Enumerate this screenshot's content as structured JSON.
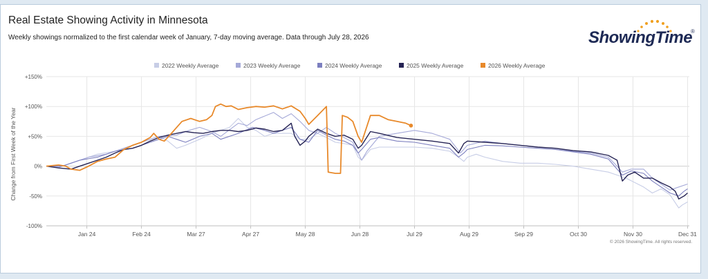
{
  "header": {
    "title": "Real Estate Showing Activity in Minnesota",
    "subtitle": "Weekly showings normalized to the first calendar week of January, 7-day moving average. Data through July 28, 2026"
  },
  "logo": {
    "text": "ShowingTime",
    "reg_mark": "®"
  },
  "copyright": "© 2026 ShowingTime. All rights reserved.",
  "colors": {
    "s2022": "#c7cde6",
    "s2023": "#a5a9d8",
    "s2024": "#7c7fbf",
    "s2025": "#252354",
    "s2026": "#e8892a",
    "grid": "#e6e6e6",
    "logo_accent": "#f0a020"
  },
  "chart_data": {
    "type": "line",
    "ylabel": "Change from First Week of the Year",
    "xlabel": "",
    "ylim": [
      -100,
      150
    ],
    "y_ticks": [
      -100,
      -50,
      0,
      50,
      100,
      150
    ],
    "y_tick_labels": [
      "-100%",
      "-50%",
      "0%",
      "+50%",
      "+100%",
      "+150%"
    ],
    "x_domain_day_of_year": [
      1,
      366
    ],
    "x_ticks": [
      {
        "label": "Jan 24",
        "day": 24
      },
      {
        "label": "Feb 24",
        "day": 55
      },
      {
        "label": "Mar 27",
        "day": 86
      },
      {
        "label": "Apr 27",
        "day": 117
      },
      {
        "label": "May 28",
        "day": 148
      },
      {
        "label": "Jun 28",
        "day": 179
      },
      {
        "label": "Jul 29",
        "day": 210
      },
      {
        "label": "Aug 29",
        "day": 241
      },
      {
        "label": "Sep 29",
        "day": 272
      },
      {
        "label": "Oct 30",
        "day": 303
      },
      {
        "label": "Nov 30",
        "day": 334
      },
      {
        "label": "Dec 31",
        "day": 365
      }
    ],
    "grid": true,
    "legend_position": "top-center",
    "series": [
      {
        "name": "2022 Weekly Average",
        "color_key": "s2022",
        "points": [
          [
            1,
            0
          ],
          [
            10,
            0
          ],
          [
            20,
            10
          ],
          [
            30,
            20
          ],
          [
            40,
            25
          ],
          [
            50,
            35
          ],
          [
            60,
            45
          ],
          [
            65,
            50
          ],
          [
            70,
            42
          ],
          [
            75,
            30
          ],
          [
            80,
            35
          ],
          [
            88,
            45
          ],
          [
            95,
            55
          ],
          [
            105,
            65
          ],
          [
            110,
            80
          ],
          [
            115,
            65
          ],
          [
            120,
            60
          ],
          [
            125,
            50
          ],
          [
            130,
            55
          ],
          [
            140,
            55
          ],
          [
            145,
            45
          ],
          [
            150,
            45
          ],
          [
            155,
            55
          ],
          [
            160,
            48
          ],
          [
            165,
            40
          ],
          [
            170,
            38
          ],
          [
            175,
            35
          ],
          [
            178,
            15
          ],
          [
            180,
            10
          ],
          [
            185,
            28
          ],
          [
            190,
            32
          ],
          [
            200,
            32
          ],
          [
            210,
            32
          ],
          [
            220,
            30
          ],
          [
            230,
            25
          ],
          [
            235,
            15
          ],
          [
            238,
            8
          ],
          [
            240,
            15
          ],
          [
            245,
            20
          ],
          [
            250,
            15
          ],
          [
            260,
            8
          ],
          [
            270,
            5
          ],
          [
            280,
            5
          ],
          [
            290,
            3
          ],
          [
            300,
            0
          ],
          [
            310,
            -5
          ],
          [
            320,
            -10
          ],
          [
            330,
            -20
          ],
          [
            340,
            -35
          ],
          [
            345,
            -45
          ],
          [
            350,
            -38
          ],
          [
            355,
            -48
          ],
          [
            360,
            -70
          ],
          [
            362,
            -65
          ],
          [
            365,
            -60
          ]
        ]
      },
      {
        "name": "2023 Weekly Average",
        "color_key": "s2023",
        "points": [
          [
            1,
            0
          ],
          [
            8,
            -2
          ],
          [
            15,
            5
          ],
          [
            25,
            15
          ],
          [
            35,
            20
          ],
          [
            45,
            30
          ],
          [
            55,
            40
          ],
          [
            65,
            50
          ],
          [
            75,
            52
          ],
          [
            82,
            60
          ],
          [
            88,
            65
          ],
          [
            95,
            58
          ],
          [
            100,
            50
          ],
          [
            110,
            72
          ],
          [
            115,
            68
          ],
          [
            120,
            78
          ],
          [
            130,
            90
          ],
          [
            135,
            80
          ],
          [
            140,
            88
          ],
          [
            145,
            75
          ],
          [
            150,
            60
          ],
          [
            155,
            55
          ],
          [
            160,
            65
          ],
          [
            165,
            55
          ],
          [
            170,
            48
          ],
          [
            175,
            40
          ],
          [
            180,
            10
          ],
          [
            183,
            25
          ],
          [
            190,
            50
          ],
          [
            200,
            55
          ],
          [
            210,
            60
          ],
          [
            220,
            55
          ],
          [
            230,
            45
          ],
          [
            236,
            22
          ],
          [
            240,
            35
          ],
          [
            250,
            42
          ],
          [
            260,
            38
          ],
          [
            270,
            35
          ],
          [
            280,
            32
          ],
          [
            290,
            30
          ],
          [
            300,
            25
          ],
          [
            310,
            22
          ],
          [
            320,
            15
          ],
          [
            325,
            0
          ],
          [
            328,
            -10
          ],
          [
            333,
            -5
          ],
          [
            340,
            -5
          ],
          [
            345,
            -20
          ],
          [
            350,
            -30
          ],
          [
            355,
            -40
          ],
          [
            360,
            -35
          ],
          [
            365,
            -30
          ]
        ]
      },
      {
        "name": "2024 Weekly Average",
        "color_key": "s2024",
        "points": [
          [
            1,
            0
          ],
          [
            10,
            0
          ],
          [
            20,
            10
          ],
          [
            30,
            15
          ],
          [
            40,
            25
          ],
          [
            50,
            30
          ],
          [
            60,
            40
          ],
          [
            65,
            45
          ],
          [
            70,
            50
          ],
          [
            75,
            45
          ],
          [
            80,
            40
          ],
          [
            88,
            50
          ],
          [
            95,
            55
          ],
          [
            100,
            45
          ],
          [
            110,
            55
          ],
          [
            118,
            65
          ],
          [
            125,
            60
          ],
          [
            130,
            55
          ],
          [
            140,
            65
          ],
          [
            145,
            45
          ],
          [
            150,
            40
          ],
          [
            155,
            60
          ],
          [
            160,
            52
          ],
          [
            165,
            45
          ],
          [
            170,
            42
          ],
          [
            175,
            35
          ],
          [
            178,
            22
          ],
          [
            180,
            28
          ],
          [
            185,
            45
          ],
          [
            190,
            48
          ],
          [
            200,
            42
          ],
          [
            210,
            40
          ],
          [
            220,
            35
          ],
          [
            230,
            30
          ],
          [
            235,
            15
          ],
          [
            238,
            22
          ],
          [
            240,
            28
          ],
          [
            250,
            35
          ],
          [
            260,
            34
          ],
          [
            270,
            32
          ],
          [
            280,
            30
          ],
          [
            290,
            28
          ],
          [
            300,
            24
          ],
          [
            310,
            20
          ],
          [
            320,
            12
          ],
          [
            325,
            -5
          ],
          [
            328,
            -15
          ],
          [
            333,
            -8
          ],
          [
            340,
            -12
          ],
          [
            345,
            -25
          ],
          [
            350,
            -35
          ],
          [
            355,
            -45
          ],
          [
            360,
            -50
          ],
          [
            363,
            -42
          ],
          [
            365,
            -38
          ]
        ]
      },
      {
        "name": "2025 Weekly Average",
        "color_key": "s2025",
        "points": [
          [
            1,
            0
          ],
          [
            8,
            -3
          ],
          [
            15,
            -5
          ],
          [
            20,
            0
          ],
          [
            25,
            5
          ],
          [
            30,
            10
          ],
          [
            35,
            15
          ],
          [
            40,
            22
          ],
          [
            45,
            28
          ],
          [
            50,
            30
          ],
          [
            55,
            35
          ],
          [
            60,
            42
          ],
          [
            65,
            48
          ],
          [
            70,
            52
          ],
          [
            75,
            55
          ],
          [
            80,
            58
          ],
          [
            85,
            56
          ],
          [
            90,
            55
          ],
          [
            95,
            58
          ],
          [
            100,
            60
          ],
          [
            105,
            60
          ],
          [
            110,
            58
          ],
          [
            115,
            60
          ],
          [
            120,
            64
          ],
          [
            125,
            62
          ],
          [
            130,
            58
          ],
          [
            135,
            60
          ],
          [
            140,
            72
          ],
          [
            142,
            50
          ],
          [
            145,
            35
          ],
          [
            148,
            42
          ],
          [
            150,
            50
          ],
          [
            155,
            62
          ],
          [
            160,
            55
          ],
          [
            165,
            50
          ],
          [
            170,
            52
          ],
          [
            175,
            45
          ],
          [
            178,
            30
          ],
          [
            180,
            35
          ],
          [
            185,
            58
          ],
          [
            190,
            55
          ],
          [
            200,
            48
          ],
          [
            210,
            45
          ],
          [
            220,
            42
          ],
          [
            230,
            38
          ],
          [
            235,
            22
          ],
          [
            238,
            38
          ],
          [
            240,
            42
          ],
          [
            250,
            40
          ],
          [
            260,
            38
          ],
          [
            270,
            35
          ],
          [
            280,
            32
          ],
          [
            290,
            30
          ],
          [
            300,
            26
          ],
          [
            310,
            24
          ],
          [
            320,
            18
          ],
          [
            325,
            10
          ],
          [
            328,
            -25
          ],
          [
            331,
            -15
          ],
          [
            335,
            -10
          ],
          [
            340,
            -20
          ],
          [
            345,
            -20
          ],
          [
            350,
            -28
          ],
          [
            355,
            -35
          ],
          [
            358,
            -42
          ],
          [
            360,
            -55
          ],
          [
            363,
            -50
          ],
          [
            365,
            -45
          ]
        ]
      },
      {
        "name": "2026 Weekly Average",
        "color_key": "s2026",
        "points": [
          [
            1,
            0
          ],
          [
            8,
            2
          ],
          [
            12,
            0
          ],
          [
            15,
            -5
          ],
          [
            20,
            -7
          ],
          [
            25,
            0
          ],
          [
            30,
            8
          ],
          [
            35,
            12
          ],
          [
            40,
            15
          ],
          [
            45,
            28
          ],
          [
            50,
            35
          ],
          [
            55,
            40
          ],
          [
            60,
            48
          ],
          [
            62,
            55
          ],
          [
            65,
            45
          ],
          [
            68,
            42
          ],
          [
            72,
            55
          ],
          [
            78,
            75
          ],
          [
            83,
            80
          ],
          [
            88,
            75
          ],
          [
            92,
            78
          ],
          [
            95,
            85
          ],
          [
            97,
            100
          ],
          [
            100,
            104
          ],
          [
            103,
            100
          ],
          [
            106,
            101
          ],
          [
            110,
            95
          ],
          [
            115,
            98
          ],
          [
            120,
            100
          ],
          [
            125,
            99
          ],
          [
            130,
            101
          ],
          [
            135,
            96
          ],
          [
            140,
            101
          ],
          [
            145,
            92
          ],
          [
            148,
            80
          ],
          [
            150,
            70
          ],
          [
            155,
            85
          ],
          [
            160,
            100
          ],
          [
            161,
            -10
          ],
          [
            165,
            -12
          ],
          [
            168,
            -12
          ],
          [
            169,
            85
          ],
          [
            172,
            82
          ],
          [
            175,
            75
          ],
          [
            178,
            50
          ],
          [
            180,
            40
          ],
          [
            185,
            85
          ],
          [
            190,
            85
          ],
          [
            195,
            78
          ],
          [
            200,
            75
          ],
          [
            205,
            72
          ],
          [
            208,
            68
          ]
        ]
      }
    ],
    "last_point_marker_series": "2026 Weekly Average"
  }
}
